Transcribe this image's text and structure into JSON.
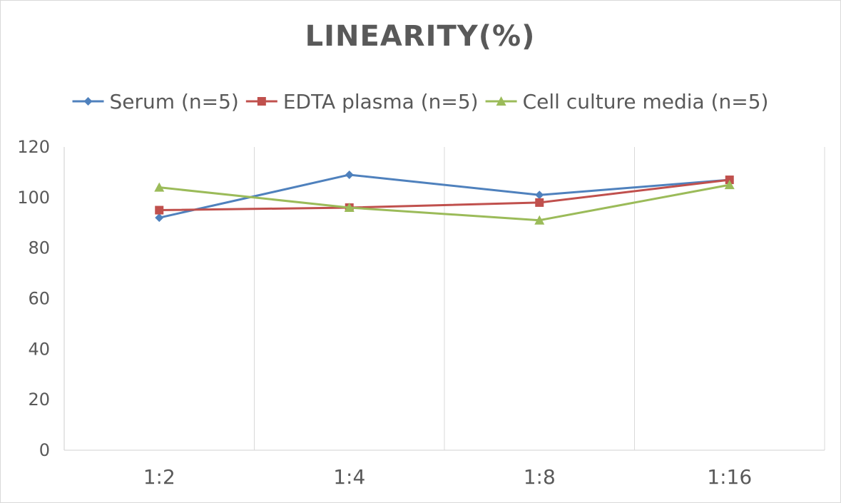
{
  "chart_data": {
    "type": "line",
    "title": "LINEARITY(%)",
    "xlabel": "",
    "ylabel": "",
    "categories": [
      "1:2",
      "1:4",
      "1:8",
      "1:16"
    ],
    "ylim": [
      0,
      120
    ],
    "yticks": [
      0,
      20,
      40,
      60,
      80,
      100,
      120
    ],
    "grid": "vertical",
    "legend": "top",
    "series": [
      {
        "name": "Serum (n=5)",
        "values": [
          92,
          109,
          101,
          107
        ],
        "color": "#4f81bd",
        "marker": "diamond"
      },
      {
        "name": "EDTA plasma (n=5)",
        "values": [
          95,
          96,
          98,
          107
        ],
        "color": "#c0504d",
        "marker": "square"
      },
      {
        "name": "Cell culture media (n=5)",
        "values": [
          104,
          96,
          91,
          105
        ],
        "color": "#9bbb59",
        "marker": "triangle"
      }
    ]
  }
}
